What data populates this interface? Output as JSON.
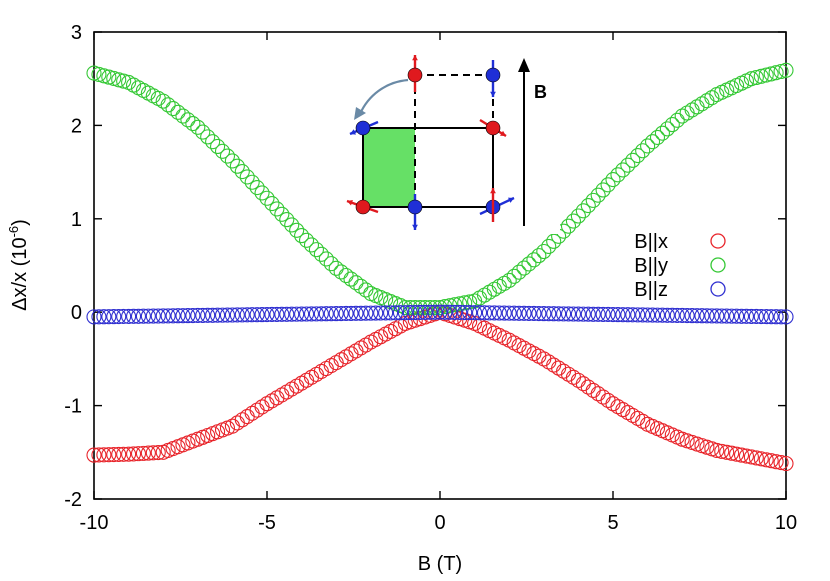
{
  "chart_data": {
    "type": "scatter",
    "title": "",
    "xlabel": "B (T)",
    "ylabel_main": "Δx/x (10",
    "ylabel_exp": "-6",
    "ylabel_close": ")",
    "xlim": [
      -10,
      10
    ],
    "ylim": [
      -2,
      3
    ],
    "xticks": [
      -10,
      -5,
      0,
      5,
      10
    ],
    "yticks": [
      -2,
      -1,
      0,
      1,
      2,
      3
    ],
    "grid": false,
    "legend_position": "right",
    "series": [
      {
        "name": "B||x",
        "color": "#e8242a",
        "marker": "open-circle",
        "x": [
          -10,
          -9,
          -8,
          -7,
          -6,
          -5,
          -4,
          -3,
          -2,
          -1,
          0,
          1,
          2,
          3,
          4,
          5,
          6,
          7,
          8,
          9,
          10
        ],
        "y": [
          -1.53,
          -1.52,
          -1.5,
          -1.36,
          -1.22,
          -0.98,
          -0.76,
          -0.54,
          -0.32,
          -0.12,
          0,
          -0.12,
          -0.3,
          -0.5,
          -0.73,
          -0.98,
          -1.2,
          -1.36,
          -1.48,
          -1.55,
          -1.62
        ]
      },
      {
        "name": "B||y",
        "color": "#34c834",
        "marker": "open-circle",
        "x": [
          -10,
          -9,
          -8,
          -7,
          -6,
          -5,
          -4,
          -3,
          -2,
          -1,
          0,
          1,
          2,
          3,
          4,
          5,
          6,
          7,
          8,
          9,
          10
        ],
        "y": [
          2.56,
          2.46,
          2.26,
          1.98,
          1.62,
          1.22,
          0.82,
          0.47,
          0.2,
          0.05,
          0.05,
          0.12,
          0.34,
          0.65,
          1.03,
          1.42,
          1.78,
          2.1,
          2.33,
          2.5,
          2.59
        ]
      },
      {
        "name": "B||z",
        "color": "#2f2fd0",
        "marker": "open-circle",
        "x": [
          -10,
          -8,
          -6,
          -4,
          -2,
          0,
          2,
          4,
          6,
          8,
          10
        ],
        "y": [
          -0.05,
          -0.04,
          -0.03,
          -0.02,
          -0.01,
          0.0,
          -0.01,
          -0.02,
          -0.03,
          -0.04,
          -0.05
        ]
      }
    ],
    "inset": {
      "field_label": "B"
    }
  }
}
